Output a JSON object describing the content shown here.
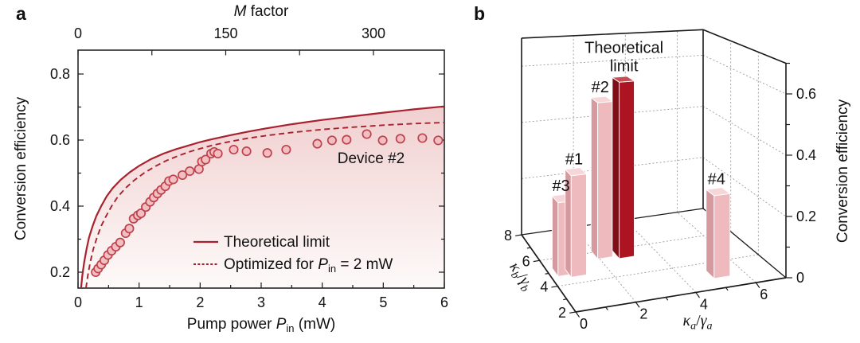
{
  "figure": {
    "panel_a_label": "a",
    "panel_b_label": "b"
  },
  "colors": {
    "curve_red": "#a8212e",
    "scatter_fill": "#f1bfc2",
    "scatter_edge": "#bf414b",
    "area_top": "#edc2c3",
    "area_bottom": "#fdfaf9",
    "bar_pink_front": "#efbabd",
    "bar_pink_side": "#d699a0",
    "bar_pink_top": "#f6d6d8",
    "bar_red_front": "#ab1420",
    "bar_red_side": "#7d0f18",
    "bar_red_top": "#c84c52",
    "grid": "#9b9b9b",
    "axis": "#1a1a1a",
    "text": "#111111"
  },
  "chart_data": [
    {
      "panel": "a",
      "type": "line+scatter",
      "ylabel": "Conversion efficiency",
      "xlabel_parts": [
        {
          "t": "Pump power "
        },
        {
          "t": "P",
          "italic": true
        },
        {
          "t": "in",
          "sub": true
        },
        {
          "t": " (mW)"
        }
      ],
      "top_axis_label_parts": [
        {
          "t": "M",
          "italic": true
        },
        {
          "t": " factor"
        }
      ],
      "xlim": [
        0,
        6
      ],
      "ylim": [
        0.152,
        0.872
      ],
      "x_ticks": [
        0,
        1,
        2,
        3,
        4,
        5,
        6
      ],
      "x_minor_ticks": [
        0.5,
        1.5,
        2.5,
        3.5,
        4.5,
        5.5
      ],
      "y_ticks": [
        0.2,
        0.4,
        0.6,
        0.8
      ],
      "y_minor_ticks": [
        0.3,
        0.5,
        0.7
      ],
      "top_axis": {
        "ticks": [
          0,
          75,
          150,
          225,
          300
        ],
        "labeled": [
          0,
          150,
          300
        ],
        "m_per_mw": 62
      },
      "annotation": {
        "text": "Device #2",
        "x": 4.8,
        "y": 0.545
      },
      "legend": {
        "entries": [
          {
            "style": "solid",
            "label_parts": [
              {
                "t": "Theoretical limit"
              }
            ]
          },
          {
            "style": "dashed",
            "label_parts": [
              {
                "t": "Optimized for "
              },
              {
                "t": "P",
                "italic": true
              },
              {
                "t": "in",
                "sub": true
              },
              {
                "t": " = 2 mW"
              }
            ]
          }
        ]
      },
      "series": [
        {
          "name": "Theoretical limit",
          "style": "solid",
          "points": [
            [
              0.05,
              0.152
            ],
            [
              0.07,
              0.19
            ],
            [
              0.1,
              0.23
            ],
            [
              0.14,
              0.27
            ],
            [
              0.18,
              0.305
            ],
            [
              0.24,
              0.34
            ],
            [
              0.3,
              0.37
            ],
            [
              0.38,
              0.4
            ],
            [
              0.47,
              0.43
            ],
            [
              0.57,
              0.455
            ],
            [
              0.7,
              0.48
            ],
            [
              0.85,
              0.503
            ],
            [
              1.0,
              0.522
            ],
            [
              1.2,
              0.543
            ],
            [
              1.4,
              0.559
            ],
            [
              1.6,
              0.572
            ],
            [
              1.8,
              0.583
            ],
            [
              2.0,
              0.594
            ],
            [
              2.2,
              0.603
            ],
            [
              2.5,
              0.615
            ],
            [
              2.8,
              0.626
            ],
            [
              3.1,
              0.636
            ],
            [
              3.5,
              0.648
            ],
            [
              4.0,
              0.661
            ],
            [
              4.5,
              0.672
            ],
            [
              5.0,
              0.683
            ],
            [
              5.5,
              0.693
            ],
            [
              6.0,
              0.702
            ]
          ]
        },
        {
          "name": "Optimized for Pin = 2 mW",
          "style": "dashed",
          "points": [
            [
              0.13,
              0.152
            ],
            [
              0.16,
              0.19
            ],
            [
              0.2,
              0.23
            ],
            [
              0.25,
              0.27
            ],
            [
              0.31,
              0.305
            ],
            [
              0.38,
              0.34
            ],
            [
              0.46,
              0.37
            ],
            [
              0.55,
              0.4
            ],
            [
              0.65,
              0.428
            ],
            [
              0.78,
              0.455
            ],
            [
              0.92,
              0.478
            ],
            [
              1.08,
              0.5
            ],
            [
              1.25,
              0.519
            ],
            [
              1.45,
              0.538
            ],
            [
              1.65,
              0.553
            ],
            [
              1.85,
              0.566
            ],
            [
              2.0,
              0.574
            ],
            [
              2.2,
              0.584
            ],
            [
              2.5,
              0.596
            ],
            [
              2.8,
              0.606
            ],
            [
              3.1,
              0.614
            ],
            [
              3.5,
              0.623
            ],
            [
              4.0,
              0.632
            ],
            [
              4.5,
              0.639
            ],
            [
              5.0,
              0.645
            ],
            [
              5.5,
              0.65
            ],
            [
              6.0,
              0.653
            ]
          ]
        },
        {
          "name": "Device #2",
          "style": "scatter",
          "points": [
            [
              0.29,
              0.2
            ],
            [
              0.33,
              0.211
            ],
            [
              0.38,
              0.223
            ],
            [
              0.43,
              0.236
            ],
            [
              0.49,
              0.252
            ],
            [
              0.55,
              0.265
            ],
            [
              0.62,
              0.277
            ],
            [
              0.69,
              0.29
            ],
            [
              0.78,
              0.318
            ],
            [
              0.84,
              0.332
            ],
            [
              0.91,
              0.362
            ],
            [
              0.98,
              0.372
            ],
            [
              1.03,
              0.378
            ],
            [
              1.11,
              0.397
            ],
            [
              1.18,
              0.413
            ],
            [
              1.24,
              0.426
            ],
            [
              1.3,
              0.438
            ],
            [
              1.36,
              0.449
            ],
            [
              1.43,
              0.46
            ],
            [
              1.49,
              0.476
            ],
            [
              1.56,
              0.481
            ],
            [
              1.71,
              0.494
            ],
            [
              1.83,
              0.506
            ],
            [
              1.98,
              0.512
            ],
            [
              2.03,
              0.535
            ],
            [
              2.09,
              0.541
            ],
            [
              2.18,
              0.559
            ],
            [
              2.23,
              0.564
            ],
            [
              2.29,
              0.559
            ],
            [
              2.55,
              0.571
            ],
            [
              2.76,
              0.566
            ],
            [
              3.1,
              0.561
            ],
            [
              3.41,
              0.571
            ],
            [
              3.92,
              0.589
            ],
            [
              4.16,
              0.599
            ],
            [
              4.4,
              0.601
            ],
            [
              4.73,
              0.618
            ],
            [
              4.99,
              0.599
            ],
            [
              5.28,
              0.604
            ],
            [
              5.64,
              0.606
            ],
            [
              5.9,
              0.599
            ]
          ]
        }
      ]
    },
    {
      "panel": "b",
      "type": "bar3d",
      "zlabel": "Conversion efficiency",
      "xlabel_parts": [
        {
          "t": "κ",
          "italic": true,
          "serif": true
        },
        {
          "t": "a",
          "sub": true,
          "italic": true,
          "serif": true
        },
        {
          "t": "/",
          "serif": true
        },
        {
          "t": "γ",
          "italic": true,
          "serif": true
        },
        {
          "t": "a",
          "sub": true,
          "italic": true,
          "serif": true
        }
      ],
      "ylabel_parts": [
        {
          "t": "κ",
          "italic": true,
          "serif": true
        },
        {
          "t": "b",
          "sub": true,
          "italic": true,
          "serif": true
        },
        {
          "t": "/",
          "serif": true
        },
        {
          "t": "γ",
          "italic": true,
          "serif": true
        },
        {
          "t": "b",
          "sub": true,
          "italic": true,
          "serif": true
        }
      ],
      "xlim": [
        0,
        7
      ],
      "ylim": [
        2,
        8
      ],
      "zlim": [
        0,
        0.7
      ],
      "x_ticks": [
        0,
        2,
        4,
        6
      ],
      "x_minor_ticks": [
        1,
        3,
        5
      ],
      "y_ticks": [
        2,
        4,
        6,
        8
      ],
      "y_minor_ticks": [
        3,
        5,
        7
      ],
      "z_ticks": [
        0,
        0.2,
        0.4,
        0.6
      ],
      "z_minor_ticks": [
        0.1,
        0.3,
        0.5,
        0.7
      ],
      "x_grid": [
        2,
        4,
        6
      ],
      "y_grid": [
        4,
        6
      ],
      "z_grid": [
        0.2,
        0.4,
        0.6
      ],
      "bars": [
        {
          "label": "#3",
          "kappa_a": 0.5,
          "kappa_b": 5.0,
          "value": 0.24,
          "color": "pink"
        },
        {
          "label": "#1",
          "kappa_a": 0.9,
          "kappa_b": 4.8,
          "value": 0.33,
          "color": "pink"
        },
        {
          "label": "#2",
          "kappa_a": 2.2,
          "kappa_b": 5.8,
          "value": 0.53,
          "color": "pink"
        },
        {
          "label": "Theoretical limit",
          "kappa_a": 2.9,
          "kappa_b": 5.6,
          "value": 0.6,
          "color": "red",
          "two_line_label": true
        },
        {
          "label": "#4",
          "kappa_a": 5.2,
          "kappa_b": 3.1,
          "value": 0.27,
          "color": "pink"
        }
      ]
    }
  ]
}
